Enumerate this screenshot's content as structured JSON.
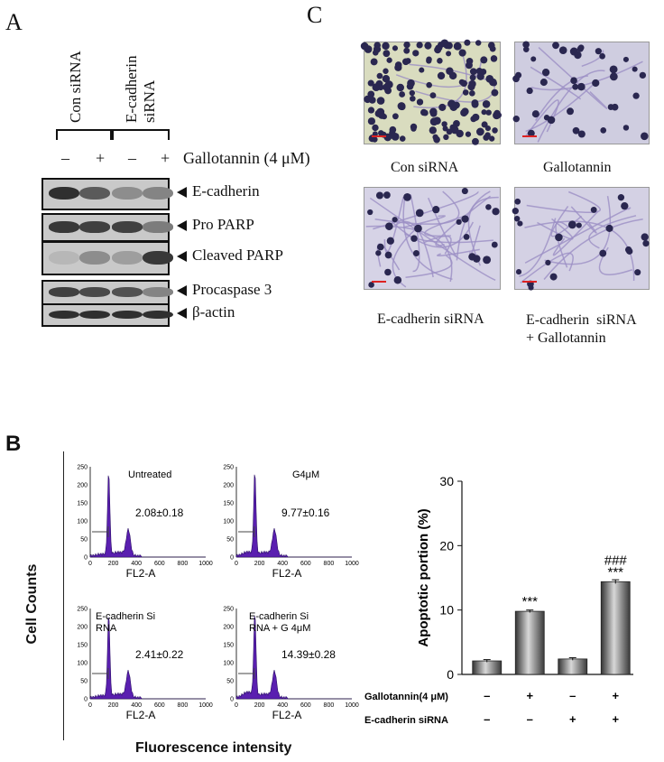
{
  "panelA": {
    "letter": "A",
    "groups": [
      "Con siRNA",
      "E-cadherin\nsiRNA"
    ],
    "treatment_signs": [
      "–",
      "+",
      "–",
      "+"
    ],
    "treatment_label": "Gallotannin (4 μM)",
    "blots": [
      {
        "label": "E-cadherin",
        "intensity": [
          0.9,
          0.65,
          0.35,
          0.4
        ]
      },
      {
        "label": "Pro PARP",
        "intensity": [
          0.85,
          0.8,
          0.8,
          0.45
        ]
      },
      {
        "label": "Cleaved PARP",
        "intensity": [
          0.1,
          0.35,
          0.25,
          0.85
        ]
      },
      {
        "label": "Procaspase 3",
        "intensity": [
          0.8,
          0.75,
          0.7,
          0.4
        ]
      },
      {
        "label": "β-actin",
        "intensity": [
          0.9,
          0.9,
          0.9,
          0.9
        ]
      }
    ]
  },
  "panelB": {
    "letter": "B",
    "ylabel": "Cell Counts",
    "xlabel": "Fluorescence intensity",
    "histograms": [
      {
        "title": "Untreated",
        "value": "2.08±0.18"
      },
      {
        "title": "G4μM",
        "value": "9.77±0.16"
      },
      {
        "title": "E-cadherin Si\nRNA",
        "value": "2.41±0.22"
      },
      {
        "title": "E-cadherin Si\nRNA  + G 4μM",
        "value": "14.39±0.28"
      }
    ],
    "hist_axis": {
      "y_ticks": [
        "0",
        "50",
        "100",
        "150",
        "200",
        "250"
      ],
      "x_ticks": [
        "0",
        "200",
        "400",
        "600",
        "800",
        "1000"
      ],
      "x_name": "FL2-A"
    }
  },
  "panelC": {
    "letter": "C",
    "captions": [
      "Con siRNA",
      "Gallotannin",
      "E-cadherin siRNA",
      "E-cadherin  siRNA\n+ Gallotannin"
    ]
  },
  "chart_data": {
    "type": "bar",
    "categories": [
      "Con siRNA",
      "Gallotannin",
      "E-cadherin siRNA",
      "E-cadherin siRNA + Gallotannin"
    ],
    "values": [
      2.1,
      9.8,
      2.4,
      14.4
    ],
    "errors": [
      0.2,
      0.2,
      0.2,
      0.3
    ],
    "ylabel": "Apoptotic portion (%)",
    "ylim": [
      0,
      30
    ],
    "yticks": [
      "0",
      "10",
      "20",
      "30"
    ],
    "annotations": [
      "",
      "***",
      "",
      "###\n***"
    ],
    "condition_rows": [
      {
        "label": "Gallotannin(4 μM)",
        "signs": [
          "–",
          "+",
          "–",
          "+"
        ]
      },
      {
        "label": "E-cadherin siRNA",
        "signs": [
          "–",
          "–",
          "+",
          "+"
        ]
      }
    ]
  }
}
